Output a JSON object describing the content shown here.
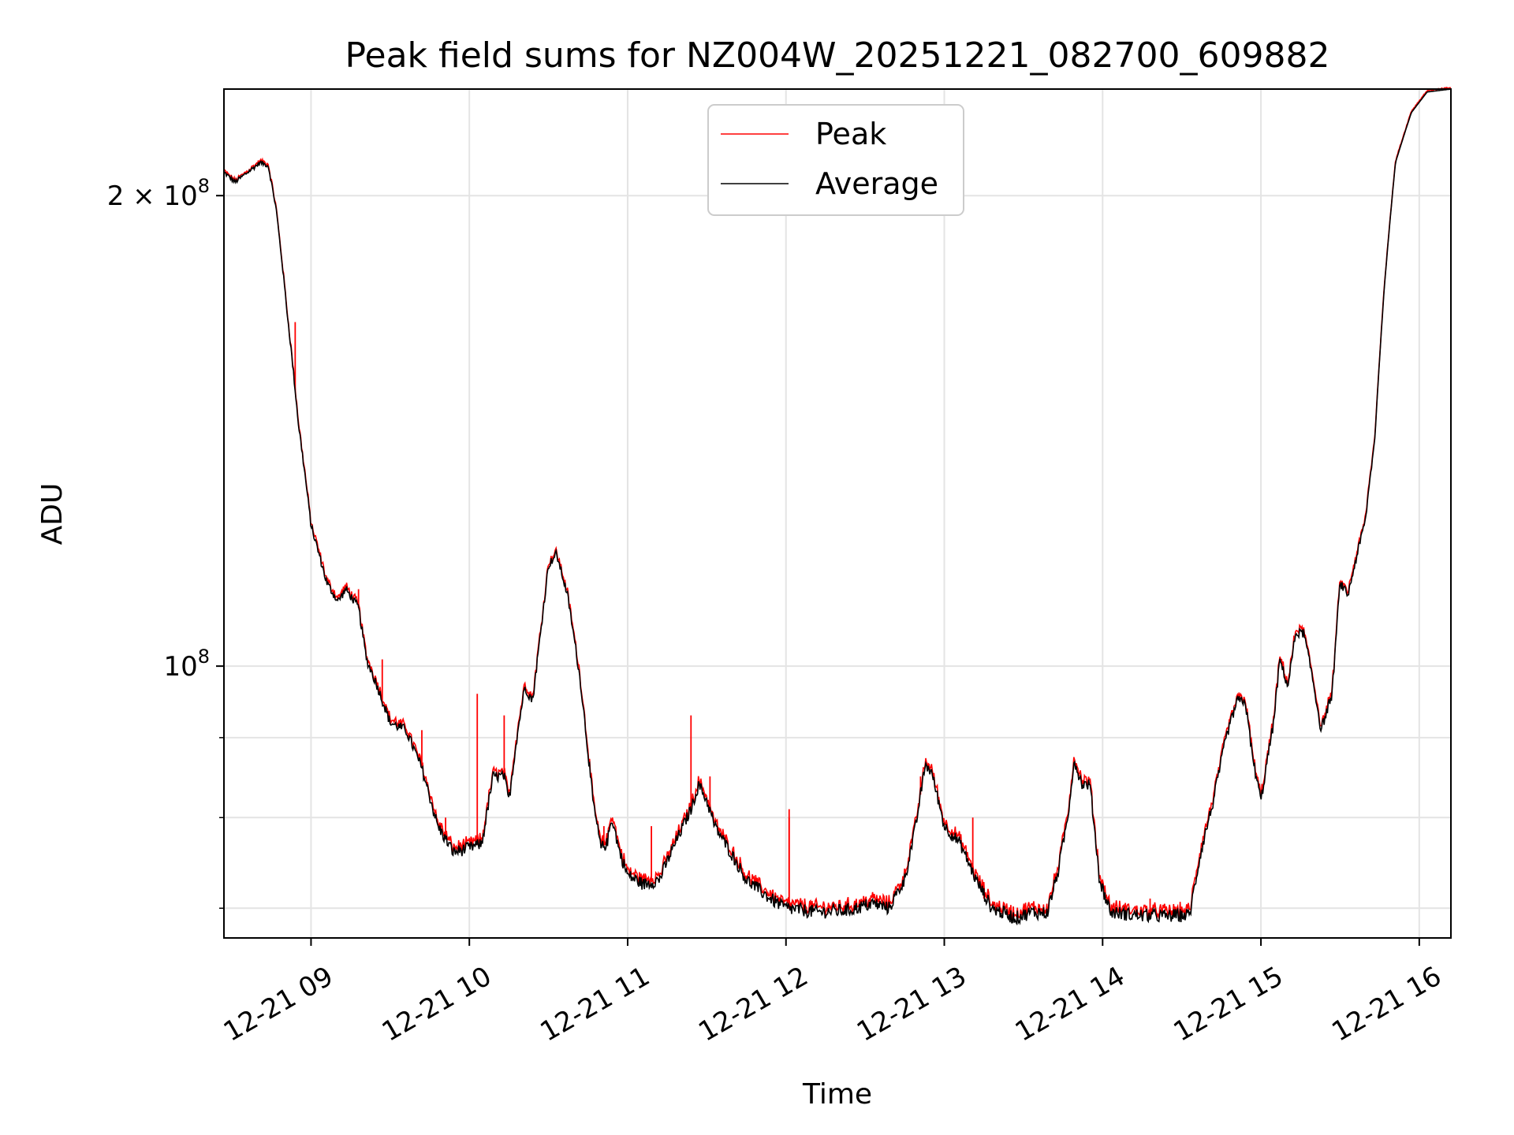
{
  "chart_data": {
    "type": "line",
    "title": "Peak field sums for NZ004W_20251221_082700_609882",
    "xlabel": "Time",
    "ylabel": "ADU",
    "yscale": "log",
    "grid": true,
    "legend_position": "top-center",
    "x_unit": "hours since 12-21 00:00",
    "xlim": [
      8.45,
      16.2
    ],
    "ylim": [
      67000000,
      234000000
    ],
    "x_ticks": [
      {
        "value": 9,
        "label": "12-21 09"
      },
      {
        "value": 10,
        "label": "12-21 10"
      },
      {
        "value": 11,
        "label": "12-21 11"
      },
      {
        "value": 12,
        "label": "12-21 12"
      },
      {
        "value": 13,
        "label": "12-21 13"
      },
      {
        "value": 14,
        "label": "12-21 14"
      },
      {
        "value": 15,
        "label": "12-21 15"
      },
      {
        "value": 16,
        "label": "12-21 16"
      }
    ],
    "y_major_ticks": [
      {
        "value": 100000000,
        "base": "10",
        "exp": "8",
        "prefix": ""
      },
      {
        "value": 200000000,
        "base": "10",
        "exp": "8",
        "prefix": "2 × "
      }
    ],
    "y_minor_ticks": [
      70000000,
      80000000,
      90000000
    ],
    "average_points": [
      [
        8.45,
        207
      ],
      [
        8.52,
        204
      ],
      [
        8.6,
        207
      ],
      [
        8.68,
        210
      ],
      [
        8.73,
        209
      ],
      [
        8.78,
        196
      ],
      [
        8.85,
        168
      ],
      [
        8.92,
        143
      ],
      [
        9.0,
        123
      ],
      [
        9.1,
        113
      ],
      [
        9.17,
        110
      ],
      [
        9.22,
        112
      ],
      [
        9.3,
        109
      ],
      [
        9.35,
        101
      ],
      [
        9.42,
        97
      ],
      [
        9.5,
        92
      ],
      [
        9.6,
        91
      ],
      [
        9.7,
        86
      ],
      [
        9.8,
        79
      ],
      [
        9.9,
        76
      ],
      [
        10.0,
        76.5
      ],
      [
        10.08,
        77
      ],
      [
        10.15,
        85
      ],
      [
        10.22,
        85
      ],
      [
        10.25,
        82
      ],
      [
        10.3,
        90
      ],
      [
        10.35,
        97
      ],
      [
        10.4,
        95
      ],
      [
        10.45,
        105
      ],
      [
        10.5,
        116
      ],
      [
        10.55,
        118
      ],
      [
        10.62,
        111
      ],
      [
        10.7,
        98
      ],
      [
        10.78,
        82
      ],
      [
        10.83,
        76.5
      ],
      [
        10.87,
        77
      ],
      [
        10.9,
        80
      ],
      [
        10.95,
        76
      ],
      [
        11.0,
        73.5
      ],
      [
        11.1,
        72.5
      ],
      [
        11.2,
        73
      ],
      [
        11.3,
        77
      ],
      [
        11.4,
        81
      ],
      [
        11.45,
        84
      ],
      [
        11.5,
        82
      ],
      [
        11.55,
        79
      ],
      [
        11.65,
        76
      ],
      [
        11.75,
        73
      ],
      [
        11.9,
        71
      ],
      [
        12.0,
        70
      ],
      [
        12.2,
        69.6
      ],
      [
        12.4,
        69.8
      ],
      [
        12.55,
        70.5
      ],
      [
        12.65,
        70
      ],
      [
        12.75,
        73
      ],
      [
        12.82,
        79
      ],
      [
        12.88,
        86.5
      ],
      [
        12.92,
        85.5
      ],
      [
        13.0,
        79
      ],
      [
        13.1,
        77
      ],
      [
        13.2,
        73
      ],
      [
        13.3,
        70
      ],
      [
        13.45,
        69
      ],
      [
        13.55,
        69.6
      ],
      [
        13.65,
        69.5
      ],
      [
        13.72,
        74
      ],
      [
        13.78,
        80
      ],
      [
        13.82,
        87
      ],
      [
        13.87,
        84
      ],
      [
        13.92,
        84
      ],
      [
        13.98,
        73
      ],
      [
        14.05,
        69.6
      ],
      [
        14.2,
        69.3
      ],
      [
        14.4,
        69.2
      ],
      [
        14.55,
        69.3
      ],
      [
        14.62,
        76
      ],
      [
        14.7,
        82
      ],
      [
        14.78,
        90
      ],
      [
        14.85,
        95
      ],
      [
        14.9,
        95
      ],
      [
        14.95,
        87
      ],
      [
        15.0,
        82
      ],
      [
        15.08,
        92
      ],
      [
        15.12,
        101
      ],
      [
        15.17,
        97
      ],
      [
        15.22,
        105
      ],
      [
        15.27,
        105
      ],
      [
        15.32,
        99
      ],
      [
        15.38,
        91
      ],
      [
        15.45,
        96
      ],
      [
        15.5,
        113
      ],
      [
        15.55,
        111
      ],
      [
        15.6,
        117
      ],
      [
        15.66,
        124
      ],
      [
        15.72,
        140
      ],
      [
        15.78,
        175
      ],
      [
        15.85,
        210
      ],
      [
        15.95,
        226
      ],
      [
        16.05,
        233
      ],
      [
        16.2,
        234
      ]
    ],
    "peak_spikes": [
      [
        8.9,
        166
      ],
      [
        9.3,
        112
      ],
      [
        9.45,
        101
      ],
      [
        9.55,
        92
      ],
      [
        9.7,
        91
      ],
      [
        9.85,
        80
      ],
      [
        10.05,
        96
      ],
      [
        10.22,
        93
      ],
      [
        10.55,
        118
      ],
      [
        10.85,
        79
      ],
      [
        11.15,
        79
      ],
      [
        11.4,
        93
      ],
      [
        11.52,
        85
      ],
      [
        12.02,
        80
      ],
      [
        12.02,
        81
      ],
      [
        12.85,
        85
      ],
      [
        13.18,
        80
      ],
      [
        13.25,
        71
      ],
      [
        14.3,
        71
      ]
    ],
    "series": [
      {
        "name": "Peak",
        "color": "#ff0000"
      },
      {
        "name": "Average",
        "color": "#000000"
      }
    ]
  }
}
